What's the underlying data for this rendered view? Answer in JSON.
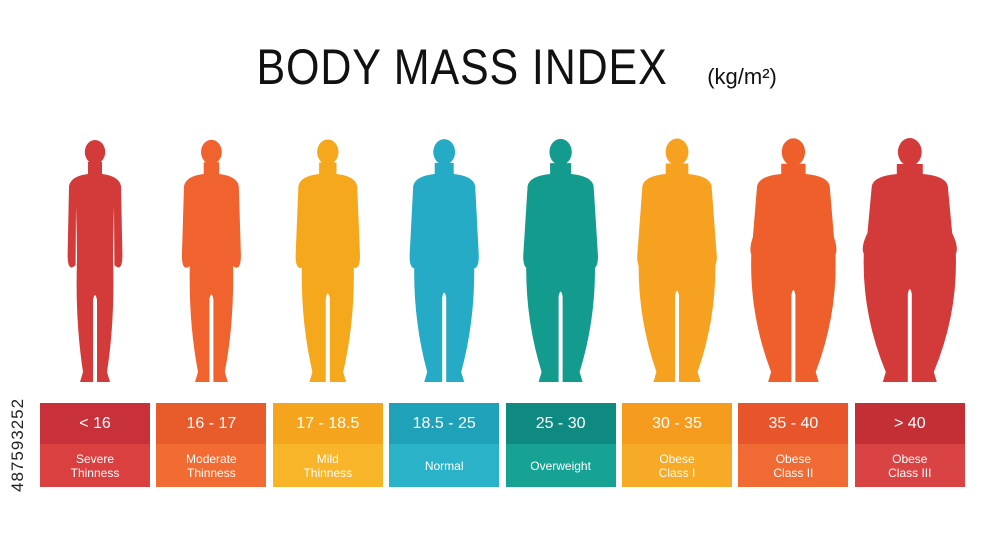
{
  "header": {
    "title": "BODY MASS INDEX",
    "unit": "(kg/m²)"
  },
  "watermark": {
    "id_text": "487593252"
  },
  "categories": [
    {
      "range": "< 16",
      "label": "Severe\nThinness",
      "top_color": "#c8303a",
      "bottom_color": "#d9403f",
      "figure_color": "#d33b3b",
      "build": 0.0
    },
    {
      "range": "16 - 17",
      "label": "Moderate\nThinness",
      "top_color": "#e85b2a",
      "bottom_color": "#f26b33",
      "figure_color": "#f0632e",
      "build": 0.12
    },
    {
      "range": "17 - 18.5",
      "label": "Mild\nThinness",
      "top_color": "#f5a41d",
      "bottom_color": "#f8b52a",
      "figure_color": "#f6a81c",
      "build": 0.28
    },
    {
      "range": "18.5 - 25",
      "label": "Normal",
      "top_color": "#1ea1b9",
      "bottom_color": "#2ab3c8",
      "figure_color": "#25abc5",
      "build": 0.42
    },
    {
      "range": "25 - 30",
      "label": "Overweight",
      "top_color": "#0f8a80",
      "bottom_color": "#17a394",
      "figure_color": "#139b8e",
      "build": 0.58
    },
    {
      "range": "30 - 35",
      "label": "Obese\nClass I",
      "top_color": "#f59b1d",
      "bottom_color": "#f7aa26",
      "figure_color": "#f6a220",
      "build": 0.72
    },
    {
      "range": "35 - 40",
      "label": "Obese\nClass II",
      "top_color": "#e8552a",
      "bottom_color": "#f06a34",
      "figure_color": "#ef5f2c",
      "build": 0.86
    },
    {
      "range": "> 40",
      "label": "Obese\nClass III",
      "top_color": "#c42e35",
      "bottom_color": "#d94343",
      "figure_color": "#d33b3b",
      "build": 1.0
    }
  ]
}
